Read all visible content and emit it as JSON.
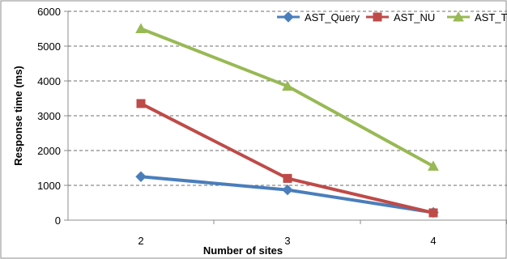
{
  "chart_data": {
    "type": "line",
    "x": [
      2,
      3,
      4
    ],
    "categories": [
      "2",
      "3",
      "4"
    ],
    "series": [
      {
        "name": "AST_Query",
        "values": [
          1250,
          870,
          220
        ],
        "color": "#4a7ebb",
        "marker": "diamond"
      },
      {
        "name": "AST_NU",
        "values": [
          3350,
          1200,
          210
        ],
        "color": "#be4b48",
        "marker": "square"
      },
      {
        "name": "AST_TU",
        "values": [
          5500,
          3850,
          1550
        ],
        "color": "#98b954",
        "marker": "triangle"
      }
    ],
    "title": "",
    "xlabel": "Number of sites",
    "ylabel": "Response time (ms)",
    "ylim": [
      0,
      6000
    ],
    "yticks": [
      "0",
      "1000",
      "2000",
      "3000",
      "4000",
      "5000",
      "6000"
    ],
    "grid": true,
    "legend": "top-right"
  }
}
